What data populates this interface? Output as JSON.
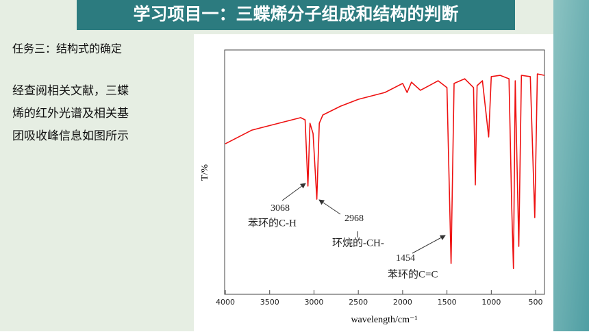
{
  "title": "学习项目一：三蝶烯分子组成和结构的判断",
  "task": "任务三：结构式的确定",
  "paragraph": [
    "经查阅相关文献，三蝶",
    "烯的红外光谱及相关基",
    "团吸收峰信息如图所示"
  ],
  "chart_data": {
    "type": "line",
    "ylabel": "T/%",
    "xlabel": "wavelength/cm⁻¹",
    "xlim": [
      4000,
      400
    ],
    "xticks": [
      4000,
      3500,
      3000,
      2500,
      2000,
      1500,
      1000,
      500
    ],
    "ylim": [
      0,
      100
    ],
    "color": "#ee1111",
    "x": [
      4000,
      3700,
      3400,
      3150,
      3100,
      3068,
      3045,
      3010,
      2968,
      2940,
      2900,
      2700,
      2500,
      2200,
      2000,
      1950,
      1900,
      1800,
      1700,
      1600,
      1500,
      1454,
      1420,
      1300,
      1200,
      1180,
      1160,
      1100,
      1030,
      1000,
      900,
      800,
      770,
      750,
      730,
      690,
      660,
      560,
      510,
      480,
      400
    ],
    "values": [
      61.6,
      67.2,
      70.0,
      72.3,
      71.4,
      44.3,
      70.0,
      65.8,
      38.9,
      70.0,
      73.4,
      77.0,
      79.8,
      82.6,
      86.3,
      82.6,
      86.8,
      83.5,
      85.4,
      87.4,
      84.6,
      12.6,
      86.3,
      88.2,
      84.6,
      44.8,
      85.4,
      87.4,
      64.4,
      89.1,
      89.6,
      88.2,
      36.4,
      10.6,
      87.4,
      19.6,
      89.6,
      89.1,
      31.4,
      90.2,
      89.6
    ],
    "annotations": [
      "3068",
      "苯环的C-H",
      "2968",
      "环烷的-CH-",
      "1454",
      "苯环的C=C"
    ]
  }
}
